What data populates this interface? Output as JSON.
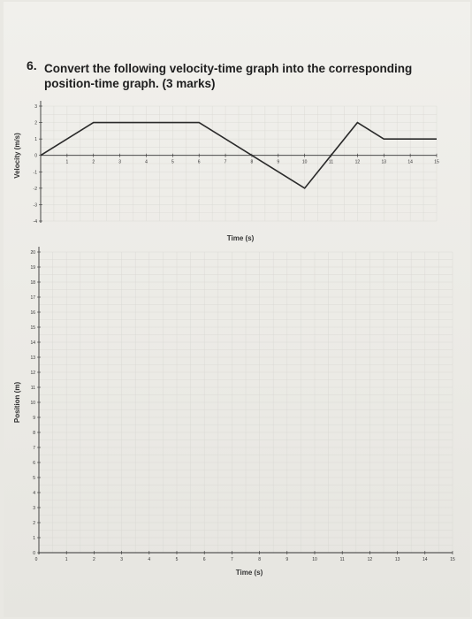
{
  "question": {
    "number": "6.",
    "line1": "Convert the following velocity-time graph into the corresponding",
    "line2_text": "position-time graph.",
    "marks": "(3 marks)"
  },
  "chart_data": [
    {
      "type": "line",
      "xlabel": "Time (s)",
      "ylabel": "Velocity (m/s)",
      "xlim": [
        0,
        15
      ],
      "ylim": [
        -4,
        3
      ],
      "x_ticks": [
        1,
        2,
        3,
        4,
        5,
        6,
        7,
        8,
        9,
        10,
        11,
        12,
        13,
        14,
        15
      ],
      "y_ticks": [
        3,
        2,
        1,
        0,
        -1,
        -2,
        -3,
        -4
      ],
      "series": [
        {
          "x": [
            0,
            2,
            6,
            8,
            10,
            12,
            13,
            15
          ],
          "values": [
            0,
            2,
            2,
            0,
            -2,
            2,
            1,
            1
          ]
        }
      ]
    },
    {
      "type": "line",
      "xlabel": "Time (s)",
      "ylabel": "Position (m)",
      "xlim": [
        0,
        15
      ],
      "ylim": [
        0,
        20
      ],
      "x_ticks": [
        0,
        1,
        2,
        3,
        4,
        5,
        6,
        7,
        8,
        9,
        10,
        11,
        12,
        13,
        14,
        15
      ],
      "y_ticks": [
        20,
        19,
        18,
        17,
        16,
        15,
        14,
        13,
        12,
        11,
        10,
        9,
        8,
        7,
        6,
        5,
        4,
        3,
        2,
        1,
        0
      ],
      "series": []
    }
  ]
}
